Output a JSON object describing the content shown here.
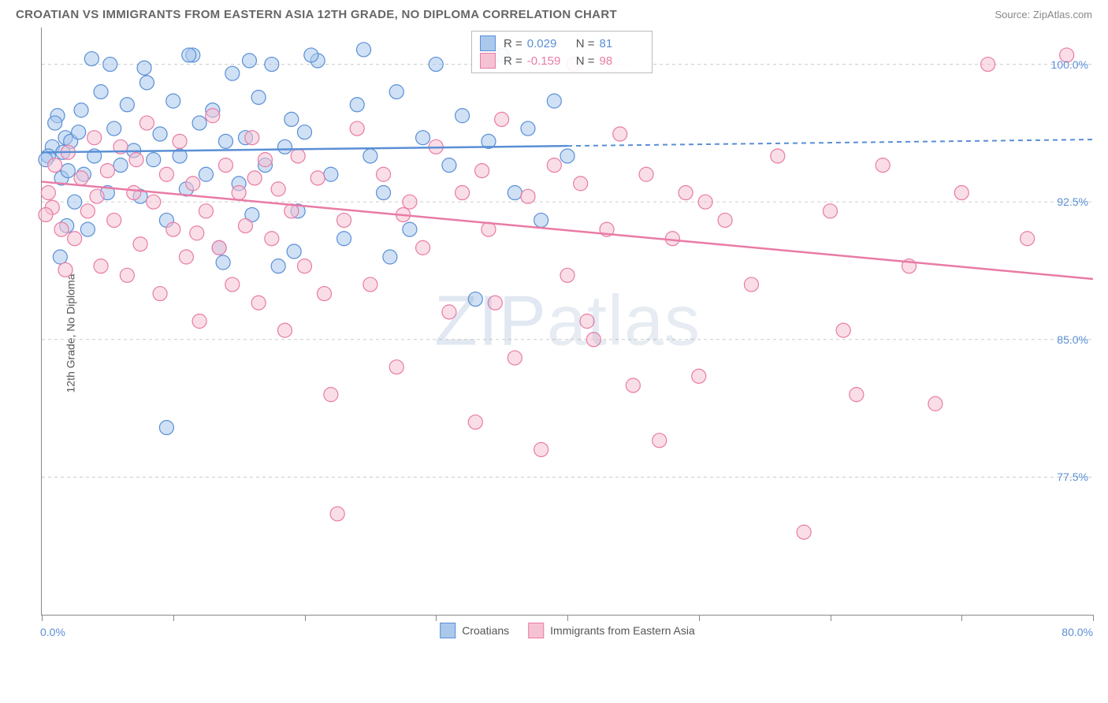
{
  "header": {
    "title": "CROATIAN VS IMMIGRANTS FROM EASTERN ASIA 12TH GRADE, NO DIPLOMA CORRELATION CHART",
    "source": "Source: ZipAtlas.com"
  },
  "watermark": "ZIPatlas",
  "chart": {
    "type": "scatter",
    "y_axis_title": "12th Grade, No Diploma",
    "xlim": [
      0,
      80
    ],
    "ylim": [
      70,
      102
    ],
    "x_ticks": [
      0,
      10,
      20,
      30,
      40,
      50,
      60,
      70,
      80
    ],
    "x_label_min": "0.0%",
    "x_label_max": "80.0%",
    "y_gridlines": [
      77.5,
      85.0,
      92.5,
      100.0
    ],
    "y_tick_labels": [
      "77.5%",
      "85.0%",
      "92.5%",
      "100.0%"
    ],
    "background_color": "#ffffff",
    "grid_color": "#cccccc",
    "series": [
      {
        "name": "Croatians",
        "fill": "#a9c8ec",
        "stroke": "#5a8fd6",
        "marker_radius": 9,
        "fill_opacity": 0.55,
        "r_value": "0.029",
        "n_value": "81",
        "trend": {
          "y_at_x0": 95.2,
          "y_at_x80": 95.9,
          "solid_until_x": 40
        },
        "points": [
          [
            0.8,
            95.5
          ],
          [
            1.2,
            97.2
          ],
          [
            1.5,
            93.8
          ],
          [
            1.8,
            96.0
          ],
          [
            2.0,
            94.2
          ],
          [
            0.5,
            95.0
          ],
          [
            1.0,
            96.8
          ],
          [
            2.2,
            95.8
          ],
          [
            2.5,
            92.5
          ],
          [
            3.0,
            97.5
          ],
          [
            3.2,
            94.0
          ],
          [
            0.3,
            94.8
          ],
          [
            1.6,
            95.2
          ],
          [
            2.8,
            96.3
          ],
          [
            3.5,
            91.0
          ],
          [
            4.0,
            95.0
          ],
          [
            4.5,
            98.5
          ],
          [
            5.0,
            93.0
          ],
          [
            5.5,
            96.5
          ],
          [
            6.0,
            94.5
          ],
          [
            1.4,
            89.5
          ],
          [
            6.5,
            97.8
          ],
          [
            7.0,
            95.3
          ],
          [
            7.5,
            92.8
          ],
          [
            8.0,
            99.0
          ],
          [
            8.5,
            94.8
          ],
          [
            9.0,
            96.2
          ],
          [
            9.5,
            91.5
          ],
          [
            10.0,
            98.0
          ],
          [
            10.5,
            95.0
          ],
          [
            11.0,
            93.2
          ],
          [
            11.5,
            100.5
          ],
          [
            12.0,
            96.8
          ],
          [
            12.5,
            94.0
          ],
          [
            13.0,
            97.5
          ],
          [
            13.5,
            90.0
          ],
          [
            14.0,
            95.8
          ],
          [
            14.5,
            99.5
          ],
          [
            15.0,
            93.5
          ],
          [
            15.5,
            96.0
          ],
          [
            16.0,
            91.8
          ],
          [
            16.5,
            98.2
          ],
          [
            17.0,
            94.5
          ],
          [
            17.5,
            100.0
          ],
          [
            18.0,
            89.0
          ],
          [
            18.5,
            95.5
          ],
          [
            19.0,
            97.0
          ],
          [
            19.5,
            92.0
          ],
          [
            20.0,
            96.3
          ],
          [
            21.0,
            100.2
          ],
          [
            22.0,
            94.0
          ],
          [
            23.0,
            90.5
          ],
          [
            24.0,
            97.8
          ],
          [
            25.0,
            95.0
          ],
          [
            26.0,
            93.0
          ],
          [
            27.0,
            98.5
          ],
          [
            28.0,
            91.0
          ],
          [
            29.0,
            96.0
          ],
          [
            30.0,
            100.0
          ],
          [
            31.0,
            94.5
          ],
          [
            32.0,
            97.2
          ],
          [
            33.0,
            87.2
          ],
          [
            34.0,
            95.8
          ],
          [
            35.0,
            100.5
          ],
          [
            36.0,
            93.0
          ],
          [
            37.0,
            96.5
          ],
          [
            38.0,
            91.5
          ],
          [
            39.0,
            98.0
          ],
          [
            40.0,
            95.0
          ],
          [
            3.8,
            100.3
          ],
          [
            5.2,
            100.0
          ],
          [
            7.8,
            99.8
          ],
          [
            11.2,
            100.5
          ],
          [
            15.8,
            100.2
          ],
          [
            20.5,
            100.5
          ],
          [
            24.5,
            100.8
          ],
          [
            9.5,
            80.2
          ],
          [
            13.8,
            89.2
          ],
          [
            19.2,
            89.8
          ],
          [
            26.5,
            89.5
          ],
          [
            1.9,
            91.2
          ]
        ]
      },
      {
        "name": "Immigrants from Eastern Asia",
        "fill": "#f5c2d4",
        "stroke": "#e97ba5",
        "marker_radius": 9,
        "fill_opacity": 0.55,
        "r_value": "-0.159",
        "n_value": "98",
        "trend": {
          "y_at_x0": 93.6,
          "y_at_x80": 88.3,
          "solid_until_x": 80
        },
        "points": [
          [
            0.5,
            93.0
          ],
          [
            0.8,
            92.2
          ],
          [
            1.0,
            94.5
          ],
          [
            1.5,
            91.0
          ],
          [
            2.0,
            95.2
          ],
          [
            2.5,
            90.5
          ],
          [
            3.0,
            93.8
          ],
          [
            3.5,
            92.0
          ],
          [
            4.0,
            96.0
          ],
          [
            4.5,
            89.0
          ],
          [
            5.0,
            94.2
          ],
          [
            5.5,
            91.5
          ],
          [
            6.0,
            95.5
          ],
          [
            6.5,
            88.5
          ],
          [
            7.0,
            93.0
          ],
          [
            7.5,
            90.2
          ],
          [
            8.0,
            96.8
          ],
          [
            8.5,
            92.5
          ],
          [
            9.0,
            87.5
          ],
          [
            9.5,
            94.0
          ],
          [
            10.0,
            91.0
          ],
          [
            10.5,
            95.8
          ],
          [
            11.0,
            89.5
          ],
          [
            11.5,
            93.5
          ],
          [
            12.0,
            86.0
          ],
          [
            12.5,
            92.0
          ],
          [
            13.0,
            97.2
          ],
          [
            13.5,
            90.0
          ],
          [
            14.0,
            94.5
          ],
          [
            14.5,
            88.0
          ],
          [
            15.0,
            93.0
          ],
          [
            15.5,
            91.2
          ],
          [
            16.0,
            96.0
          ],
          [
            16.5,
            87.0
          ],
          [
            17.0,
            94.8
          ],
          [
            17.5,
            90.5
          ],
          [
            18.0,
            93.2
          ],
          [
            18.5,
            85.5
          ],
          [
            19.0,
            92.0
          ],
          [
            19.5,
            95.0
          ],
          [
            20.0,
            89.0
          ],
          [
            21.0,
            93.8
          ],
          [
            22.0,
            82.0
          ],
          [
            23.0,
            91.5
          ],
          [
            24.0,
            96.5
          ],
          [
            25.0,
            88.0
          ],
          [
            26.0,
            94.0
          ],
          [
            27.0,
            83.5
          ],
          [
            28.0,
            92.5
          ],
          [
            29.0,
            90.0
          ],
          [
            30.0,
            95.5
          ],
          [
            31.0,
            86.5
          ],
          [
            32.0,
            93.0
          ],
          [
            33.0,
            80.5
          ],
          [
            34.0,
            91.0
          ],
          [
            35.0,
            97.0
          ],
          [
            36.0,
            84.0
          ],
          [
            37.0,
            92.8
          ],
          [
            38.0,
            79.0
          ],
          [
            39.0,
            94.5
          ],
          [
            40.0,
            88.5
          ],
          [
            41.0,
            93.5
          ],
          [
            42.0,
            85.0
          ],
          [
            43.0,
            91.0
          ],
          [
            44.0,
            96.2
          ],
          [
            45.0,
            82.5
          ],
          [
            46.0,
            94.0
          ],
          [
            47.0,
            79.5
          ],
          [
            48.0,
            90.5
          ],
          [
            49.0,
            93.0
          ],
          [
            50.0,
            83.0
          ],
          [
            52.0,
            91.5
          ],
          [
            54.0,
            88.0
          ],
          [
            56.0,
            95.0
          ],
          [
            58.0,
            74.5
          ],
          [
            60.0,
            92.0
          ],
          [
            62.0,
            82.0
          ],
          [
            64.0,
            94.5
          ],
          [
            66.0,
            89.0
          ],
          [
            68.0,
            81.5
          ],
          [
            70.0,
            93.0
          ],
          [
            72.0,
            100.0
          ],
          [
            75.0,
            90.5
          ],
          [
            78.0,
            100.5
          ],
          [
            40.5,
            100.0
          ],
          [
            22.5,
            75.5
          ],
          [
            34.5,
            87.0
          ],
          [
            0.3,
            91.8
          ],
          [
            1.8,
            88.8
          ],
          [
            4.2,
            92.8
          ],
          [
            7.2,
            94.8
          ],
          [
            11.8,
            90.8
          ],
          [
            16.2,
            93.8
          ],
          [
            21.5,
            87.5
          ],
          [
            27.5,
            91.8
          ],
          [
            33.5,
            94.2
          ],
          [
            41.5,
            86.0
          ],
          [
            50.5,
            92.5
          ],
          [
            61.0,
            85.5
          ]
        ]
      }
    ]
  },
  "legend": {
    "s1_label": "Croatians",
    "s2_label": "Immigrants from Eastern Asia"
  }
}
